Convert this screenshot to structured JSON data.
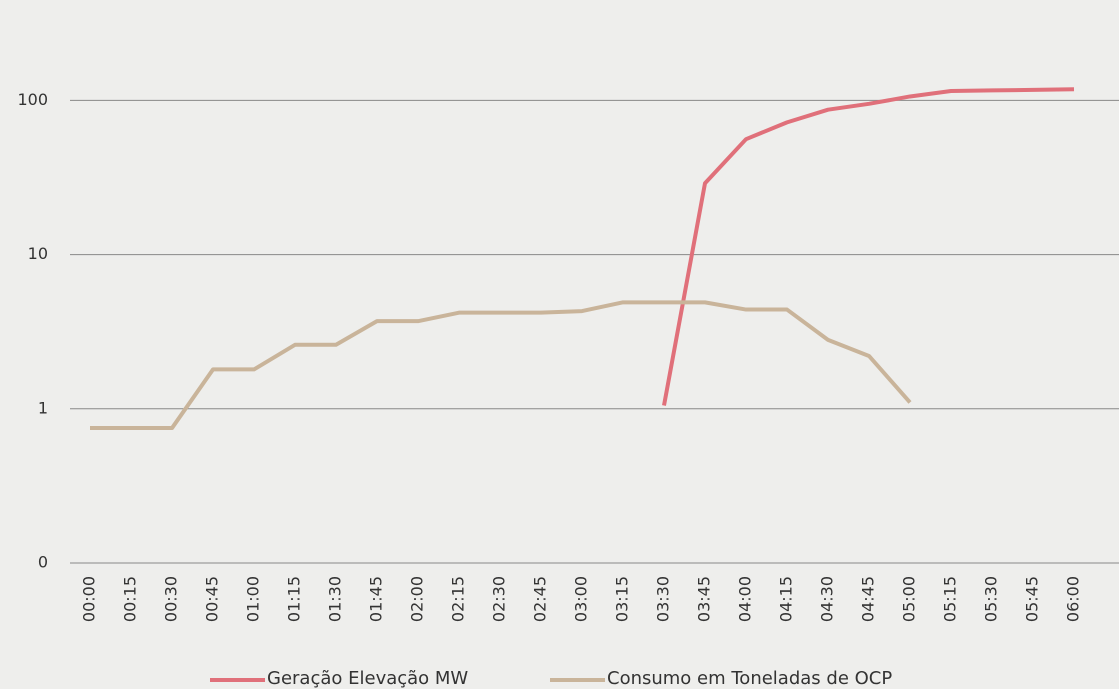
{
  "chart_data": {
    "type": "line",
    "categories": [
      "00:00",
      "00:15",
      "00:30",
      "00:45",
      "01:00",
      "01:15",
      "01:30",
      "01:45",
      "02:00",
      "02:15",
      "02:30",
      "02:45",
      "03:00",
      "03:15",
      "03:30",
      "03:45",
      "04:00",
      "04:15",
      "04:30",
      "04:45",
      "05:00",
      "05:15",
      "05:30",
      "05:45",
      "06:00"
    ],
    "series": [
      {
        "name": "Geração Elevação MW",
        "color": "#e0707a",
        "values": [
          null,
          null,
          null,
          null,
          null,
          null,
          null,
          null,
          null,
          null,
          null,
          null,
          null,
          null,
          1.05,
          29,
          56,
          72,
          87,
          95,
          106,
          115,
          116,
          117,
          118
        ]
      },
      {
        "name": "Consumo em Toneladas de OCP",
        "color": "#c9b49a",
        "values": [
          0.75,
          0.75,
          0.75,
          1.8,
          1.8,
          2.6,
          2.6,
          3.7,
          3.7,
          4.2,
          4.2,
          4.2,
          4.3,
          4.9,
          4.9,
          4.9,
          4.4,
          4.4,
          2.8,
          2.2,
          1.1,
          null,
          null,
          null,
          null
        ]
      }
    ],
    "log_scale": true,
    "ylim": [
      0.1,
      180
    ],
    "yticks": [
      {
        "value": 0.1,
        "label": "0"
      },
      1,
      10,
      100
    ],
    "grid": true,
    "legend": "bottom"
  }
}
